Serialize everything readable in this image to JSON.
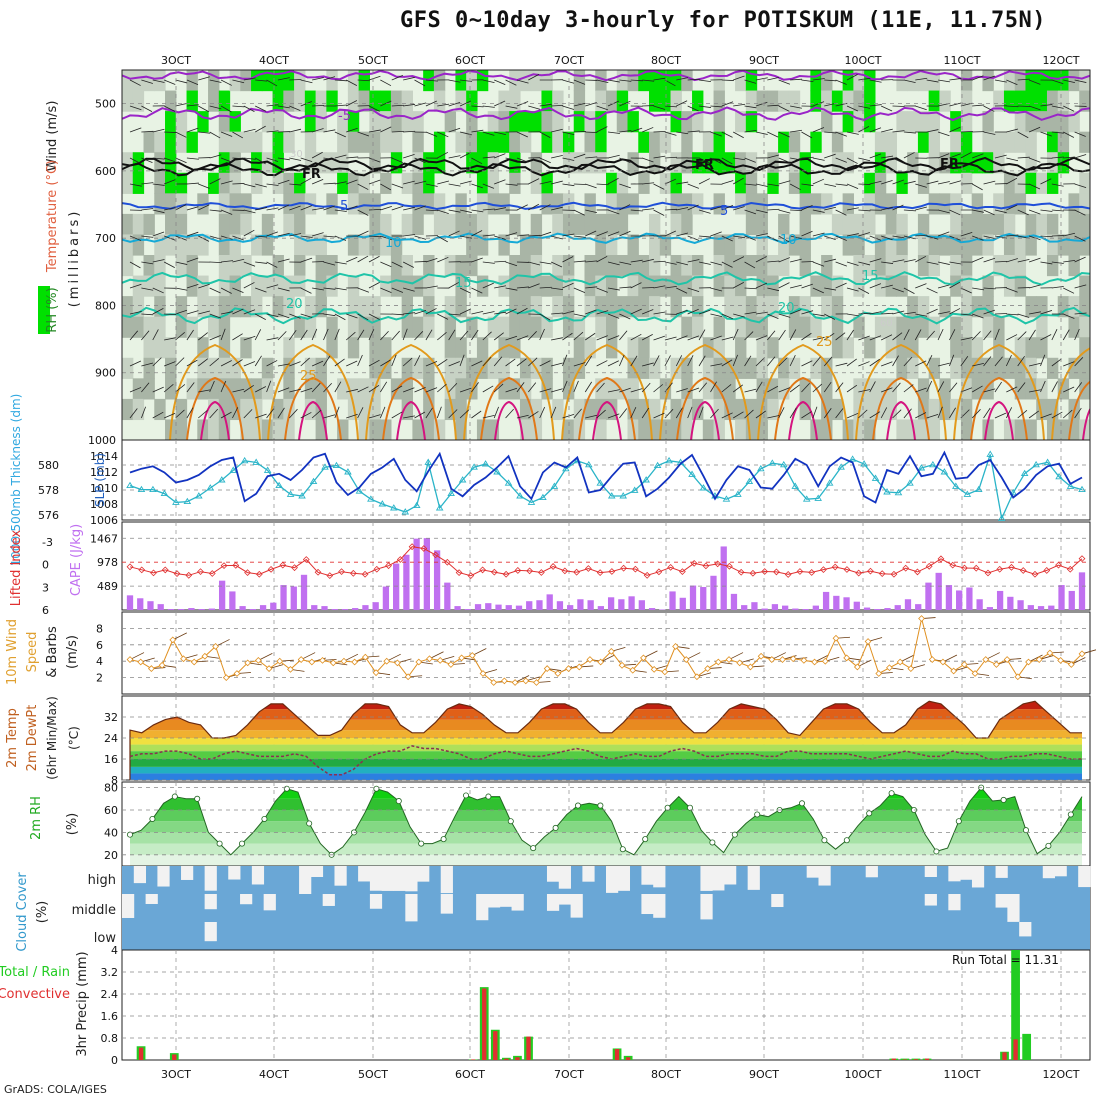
{
  "title": "GFS 0~10day 3-hourly for POTISKUM (11E, 11.75N)",
  "credit": "GrADS: COLA/IGES",
  "colors": {
    "rh_light": "#e8f3e4",
    "rh_mid": "#c7d2c4",
    "rh_dark": "#a9b5a6",
    "rh_green": "#00e000",
    "temp_purple": "#9a25c8",
    "temp_blue": "#1f4fd8",
    "temp_cyan": "#15a9d6",
    "temp_teal": "#1fc4a8",
    "temp_orange": "#e29a1c",
    "temp_red": "#d4147f",
    "slp": "#2ab4c8",
    "thick": "#1233c0",
    "li": "#e03030",
    "cape": "#c070f0",
    "wind": "#e09020",
    "rh2m": "#22cc22",
    "cloud": "#6aa7d6",
    "cloud_bg": "#f2f2f2",
    "precip_total": "#22cc22",
    "precip_conv": "#e03030"
  },
  "chart_data": [
    {
      "type": "heatmap",
      "name_note": "",
      "xticks": [
        "3OCT",
        "4OCT",
        "5OCT",
        "6OCT",
        "7OCT",
        "8OCT",
        "9OCT",
        "10OCT",
        "11OCT",
        "12OCT"
      ],
      "ylabel_parts": [
        "Wind (m/s)",
        "Temperature (°C)",
        "RH (%)"
      ],
      "ylabel_units": "(millibars)",
      "yticks": [
        500,
        600,
        700,
        800,
        900,
        1000
      ],
      "ylim": [
        1000,
        450
      ],
      "temperature_labels": [
        "-5",
        "5",
        "10",
        "15",
        "20",
        "25",
        "FR"
      ],
      "rh_labels": [
        "30",
        "60"
      ]
    },
    {
      "type": "line",
      "ylabel_left": "1000-500mb Thickness (dm)",
      "ylabel_right": "SLP (mb)",
      "yticks_left": [
        576,
        578,
        580
      ],
      "yticks_right": [
        1006,
        1008,
        1010,
        1012,
        1014
      ],
      "ylim_left": [
        575.6,
        582.0
      ],
      "ylim_right": [
        1006,
        1016
      ],
      "series": [
        {
          "name": "Thickness",
          "values": [
            579.4,
            579.7,
            579.9,
            579.4,
            578.6,
            578.8,
            579.2,
            579.9,
            580.4,
            580.6,
            577.1,
            577.7,
            579.1,
            579.3,
            578.8,
            579.6,
            580.6,
            580.9,
            578.6,
            577.6,
            578.2,
            579.3,
            579.8,
            580.5,
            578.8,
            577.9,
            579.5,
            580.9,
            578.1,
            577.5,
            578.4,
            579.0,
            579.8,
            580.7,
            578.3,
            577.3,
            579.4,
            580.2,
            579.8,
            580.6,
            577.8,
            578.0,
            579.1,
            580.1,
            580.2,
            577.5,
            578.1,
            579.0,
            580.1,
            580.8,
            579.1,
            577.3,
            578.8,
            579.9,
            579.6,
            578.2,
            578.1,
            579.2,
            580.5,
            580.0,
            578.3,
            579.9,
            580.6,
            580.2,
            577.5,
            577.0,
            579.6,
            579.3,
            580.7,
            579.1,
            579.3,
            581.0,
            578.9,
            579.0,
            580.0,
            580.4,
            579.0,
            577.4,
            578.1,
            579.2,
            579.9,
            580.1,
            578.5,
            579.0
          ]
        },
        {
          "name": "SLP",
          "values": [
            1010.3,
            1009.8,
            1009.8,
            1009.3,
            1008.2,
            1008.3,
            1009.0,
            1010.0,
            1011.0,
            1012.2,
            1013.4,
            1013.2,
            1012.2,
            1010.3,
            1009.2,
            1009.0,
            1010.8,
            1012.6,
            1012.8,
            1012.0,
            1009.6,
            1008.6,
            1008.0,
            1007.5,
            1007.0,
            1007.8,
            1013.2,
            1007.5,
            1009.3,
            1011.0,
            1012.6,
            1013.0,
            1012.0,
            1010.6,
            1009.0,
            1008.2,
            1008.8,
            1010.2,
            1012.4,
            1013.4,
            1012.9,
            1010.6,
            1009.0,
            1009.0,
            1009.7,
            1011.0,
            1012.8,
            1013.4,
            1013.2,
            1011.7,
            1010.0,
            1009.0,
            1008.6,
            1009.2,
            1010.8,
            1012.4,
            1013.1,
            1012.9,
            1010.2,
            1008.6,
            1008.7,
            1010.6,
            1012.6,
            1013.6,
            1013.0,
            1011.2,
            1009.5,
            1009.4,
            1010.6,
            1012.5,
            1012.9,
            1012.0,
            1010.2,
            1009.2,
            1009.8,
            1014.2,
            1006.2,
            1009.4,
            1011.8,
            1012.9,
            1013.2,
            1011.4,
            1010.2,
            1009.8
          ]
        }
      ]
    },
    {
      "type": "bar",
      "ylabel_left": "Lifted Index",
      "ylabel_right": "CAPE (J/kg)",
      "yticks_left": [
        -3,
        0,
        3,
        6
      ],
      "yticks_right": [
        489,
        978,
        1467
      ],
      "cape_values": [
        300,
        240,
        180,
        120,
        20,
        20,
        40,
        20,
        30,
        600,
        380,
        80,
        20,
        100,
        150,
        510,
        480,
        720,
        100,
        80,
        20,
        20,
        40,
        100,
        160,
        480,
        950,
        1130,
        1460,
        1470,
        1220,
        560,
        80,
        20,
        120,
        140,
        110,
        100,
        90,
        180,
        200,
        320,
        180,
        100,
        220,
        200,
        80,
        260,
        220,
        280,
        200,
        40,
        10,
        380,
        250,
        500,
        470,
        700,
        1300,
        330,
        100,
        160,
        30,
        120,
        90,
        30,
        20,
        90,
        370,
        290,
        260,
        170,
        50,
        20,
        40,
        100,
        220,
        120,
        560,
        760,
        510,
        400,
        460,
        220,
        60,
        390,
        270,
        200,
        100,
        80,
        90,
        510,
        390,
        770
      ]
    },
    {
      "type": "line",
      "ylabel_parts": [
        "10m Wind",
        "Speed",
        "& Barbs"
      ],
      "ylabel_units": "(m/s)",
      "yticks": [
        2,
        4,
        6,
        8
      ],
      "ylim": [
        0,
        10
      ],
      "values": [
        4.2,
        3.9,
        3.1,
        3.5,
        6.6,
        4.3,
        3.9,
        4.6,
        5.8,
        2.0,
        2.5,
        3.8,
        4.1,
        3.1,
        4.0,
        3.0,
        4.2,
        3.9,
        4.1,
        3.8,
        4.0,
        3.9,
        4.5,
        2.6,
        4.0,
        3.8,
        2.1,
        3.9,
        4.3,
        4.1,
        3.6,
        4.4,
        4.7,
        2.5,
        1.4,
        1.6,
        1.4,
        1.6,
        1.4,
        3.1,
        2.5,
        3.1,
        3.3,
        4.2,
        3.9,
        5.2,
        3.5,
        2.9,
        4.4,
        3.0,
        2.7,
        5.8,
        4.2,
        2.1,
        3.1,
        3.9,
        4.2,
        3.8,
        3.3,
        4.6,
        4.2,
        4.2,
        4.3,
        4.1,
        3.9,
        4.0,
        6.8,
        4.4,
        3.3,
        6.4,
        2.5,
        3.2,
        3.9,
        3.1,
        9.2,
        4.2,
        3.9,
        2.8,
        3.6,
        2.5,
        4.2,
        3.6,
        4.2,
        2.1,
        3.9,
        4.2,
        5.0,
        4.1,
        3.6,
        4.9
      ]
    },
    {
      "type": "area",
      "ylabel_parts": [
        "2m Temp",
        "2m DewPt",
        "(6hr Min/Max)"
      ],
      "ylabel_units": "(°C)",
      "yticks": [
        8,
        16,
        24,
        32
      ],
      "ylim": [
        8,
        40
      ],
      "series": [
        {
          "name": "Temp",
          "values": [
            27,
            26,
            29,
            31,
            32,
            30,
            29,
            24,
            24,
            25,
            29,
            34,
            37,
            37,
            33,
            29,
            25,
            25,
            27,
            33,
            37,
            37,
            36,
            29,
            26,
            26,
            30,
            35,
            37,
            36,
            33,
            29,
            26,
            26,
            30,
            35,
            37,
            37,
            35,
            30,
            26,
            26,
            30,
            35,
            37,
            37,
            36,
            30,
            26,
            26,
            30,
            35,
            37,
            36,
            35,
            31,
            26,
            25,
            30,
            35,
            37,
            37,
            35,
            30,
            26,
            26,
            29,
            35,
            38,
            37,
            33,
            29,
            24,
            24,
            31,
            34,
            37,
            38,
            34,
            30,
            26,
            26
          ]
        },
        {
          "name": "DewPt",
          "values": [
            17,
            18,
            18,
            19,
            19,
            18,
            16,
            16,
            18,
            19,
            18,
            17,
            17,
            17,
            18,
            17,
            13,
            10,
            10,
            12,
            16,
            18,
            19,
            19,
            21,
            20,
            20,
            19,
            18,
            16,
            16,
            18,
            19,
            18,
            17,
            17,
            18,
            19,
            20,
            19,
            17,
            16,
            17,
            18,
            17,
            17,
            19,
            20,
            19,
            17,
            17,
            18,
            18,
            18,
            17,
            17,
            19,
            19,
            18,
            18,
            18,
            18,
            17,
            16,
            17,
            18,
            19,
            18,
            17,
            17,
            19,
            18,
            18,
            16,
            16,
            17,
            17,
            18,
            18,
            17,
            16,
            16
          ]
        }
      ]
    },
    {
      "type": "area",
      "ylabel_parts": [
        "2m RH"
      ],
      "ylabel_units": "(%)",
      "yticks": [
        20,
        40,
        60,
        80
      ],
      "ylim": [
        10,
        85
      ],
      "values": [
        38,
        42,
        52,
        66,
        72,
        70,
        70,
        40,
        30,
        20,
        30,
        40,
        52,
        68,
        79,
        76,
        48,
        30,
        20,
        27,
        40,
        58,
        79,
        76,
        68,
        45,
        30,
        30,
        34,
        54,
        73,
        69,
        72,
        72,
        50,
        33,
        26,
        36,
        44,
        56,
        64,
        66,
        64,
        50,
        25,
        20,
        34,
        50,
        62,
        72,
        62,
        42,
        31,
        22,
        38,
        48,
        56,
        54,
        60,
        62,
        66,
        52,
        33,
        25,
        33,
        46,
        57,
        64,
        75,
        72,
        60,
        38,
        23,
        26,
        50,
        68,
        80,
        68,
        69,
        72,
        42,
        21,
        28,
        40,
        56,
        72
      ]
    },
    {
      "type": "heatmap",
      "ylabel_parts": [
        "Cloud Cover"
      ],
      "ylabel_units": "(%)",
      "levels": [
        "high",
        "middle",
        "low"
      ]
    },
    {
      "type": "bar",
      "ylabel_parts": [
        "3hr Precip",
        "(mm)"
      ],
      "legend_parts": [
        "Total / Rain",
        "Convective"
      ],
      "yticks": [
        0,
        0.8,
        1.6,
        2.4,
        3.2,
        4
      ],
      "ylim": [
        0,
        4
      ],
      "annotation": "Run Total = 11.31",
      "total_values": [
        0,
        0.5,
        0,
        0,
        0.25,
        0,
        0,
        0,
        0,
        0,
        0,
        0,
        0,
        0,
        0,
        0,
        0,
        0,
        0,
        0,
        0,
        0,
        0,
        0,
        0,
        0,
        0,
        0,
        0,
        0,
        0,
        0.02,
        2.65,
        1.1,
        0.08,
        0.15,
        0.85,
        0,
        0,
        0,
        0,
        0,
        0,
        0,
        0.42,
        0.15,
        0,
        0,
        0,
        0,
        0,
        0,
        0,
        0,
        0,
        0,
        0,
        0,
        0,
        0,
        0,
        0,
        0,
        0,
        0,
        0,
        0,
        0,
        0,
        0.05,
        0.05,
        0.05,
        0.05,
        0,
        0,
        0,
        0,
        0,
        0,
        0.3,
        4.0,
        0.95,
        0,
        0,
        0,
        0,
        0
      ],
      "conv_values": [
        0,
        0.45,
        0,
        0,
        0.2,
        0,
        0,
        0,
        0,
        0,
        0,
        0,
        0,
        0,
        0,
        0,
        0,
        0,
        0,
        0,
        0,
        0,
        0,
        0,
        0,
        0,
        0,
        0,
        0,
        0,
        0,
        0.02,
        2.6,
        1.05,
        0.05,
        0.1,
        0.85,
        0,
        0,
        0,
        0,
        0,
        0,
        0,
        0.4,
        0.1,
        0,
        0,
        0,
        0,
        0,
        0,
        0,
        0,
        0,
        0,
        0,
        0,
        0,
        0,
        0,
        0,
        0,
        0,
        0,
        0,
        0,
        0,
        0,
        0.05,
        0.02,
        0.03,
        0.05,
        0,
        0,
        0,
        0,
        0,
        0,
        0.28,
        0.75,
        0,
        0,
        0,
        0,
        0,
        0
      ]
    }
  ]
}
